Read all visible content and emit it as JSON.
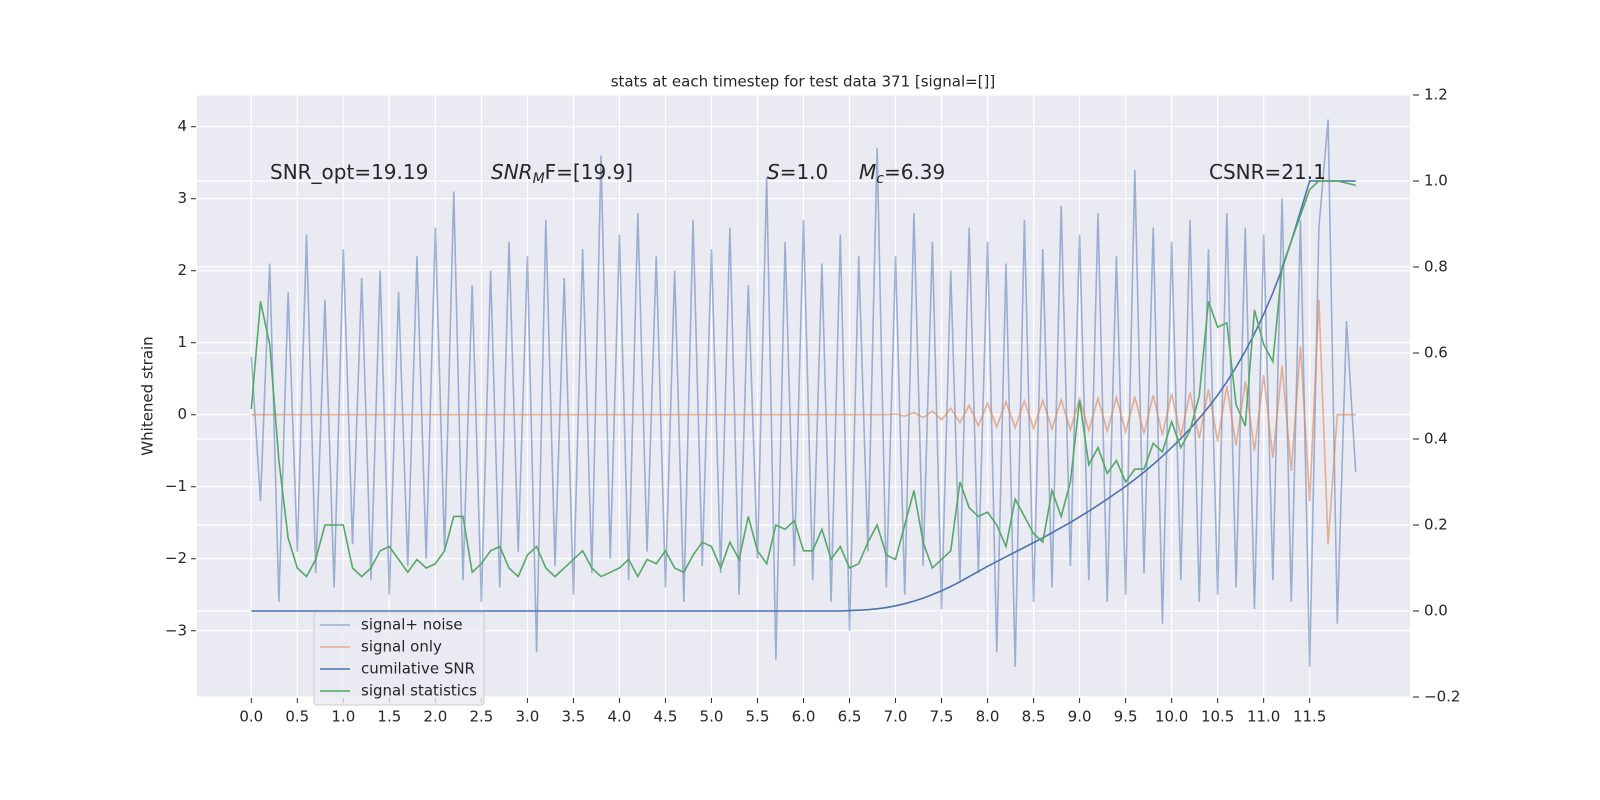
{
  "chart_data": {
    "type": "line",
    "title": "stats at each timestep for test data 371 [signal=[]]",
    "ylabel": "Whitened strain",
    "grid": true,
    "legend": "lower left",
    "xlim": [
      -0.59,
      12.59
    ],
    "ylim": [
      -3.92,
      4.44
    ],
    "y2lim": [
      -0.2,
      1.2
    ],
    "xticks": [
      {
        "value": 0,
        "label": "0.0"
      },
      0.5,
      {
        "value": 1,
        "label": "1.0"
      },
      1.5,
      {
        "value": 2,
        "label": "2.0"
      },
      2.5,
      {
        "value": 3,
        "label": "3.0"
      },
      3.5,
      {
        "value": 4,
        "label": "4.0"
      },
      4.5,
      {
        "value": 5,
        "label": "5.0"
      },
      5.5,
      {
        "value": 6,
        "label": "6.0"
      },
      6.5,
      {
        "value": 7,
        "label": "7.0"
      },
      7.5,
      {
        "value": 8,
        "label": "8.0"
      },
      8.5,
      {
        "value": 9,
        "label": "9.0"
      },
      9.5,
      {
        "value": 10,
        "label": "10.0"
      },
      10.5,
      {
        "value": 11,
        "label": "11.0"
      },
      11.5
    ],
    "yticks": [
      {
        "value": -3,
        "label": "−3"
      },
      {
        "value": -2,
        "label": "−2"
      },
      {
        "value": -1,
        "label": "−1"
      },
      0,
      1,
      2,
      3,
      4
    ],
    "y2ticks": [
      {
        "value": -0.2,
        "label": "−0.2"
      },
      {
        "value": 0,
        "label": "0.0"
      },
      0.2,
      0.4,
      0.6,
      0.8,
      {
        "value": 1,
        "label": "1.0"
      },
      1.2
    ],
    "annotations": [
      {
        "text": "SNR_opt=19.19"
      },
      {
        "text": "SNR",
        "sub": "M",
        "after": "F=[19.9]"
      },
      {
        "text": "S",
        "after": "=1.0"
      },
      {
        "text": "M",
        "sub": "c",
        "after": "=6.39"
      },
      {
        "text": "CSNR=21.1"
      }
    ],
    "x": [
      0,
      0.1,
      0.2,
      0.3,
      0.4,
      0.5,
      0.6,
      0.7,
      0.8,
      0.9,
      1,
      1.1,
      1.2,
      1.3,
      1.4,
      1.5,
      1.6,
      1.7,
      1.8,
      1.9,
      2,
      2.1,
      2.2,
      2.3,
      2.4,
      2.5,
      2.6,
      2.7,
      2.8,
      2.9,
      3,
      3.1,
      3.2,
      3.3,
      3.4,
      3.5,
      3.6,
      3.7,
      3.8,
      3.9,
      4,
      4.1,
      4.2,
      4.3,
      4.4,
      4.5,
      4.6,
      4.7,
      4.8,
      4.9,
      5,
      5.1,
      5.2,
      5.3,
      5.4,
      5.5,
      5.6,
      5.7,
      5.8,
      5.9,
      6,
      6.1,
      6.2,
      6.3,
      6.4,
      6.5,
      6.6,
      6.7,
      6.8,
      6.9,
      7,
      7.1,
      7.2,
      7.3,
      7.4,
      7.5,
      7.6,
      7.7,
      7.8,
      7.9,
      8,
      8.1,
      8.2,
      8.3,
      8.4,
      8.5,
      8.6,
      8.7,
      8.8,
      8.9,
      9,
      9.1,
      9.2,
      9.3,
      9.4,
      9.5,
      9.6,
      9.7,
      9.8,
      9.9,
      10,
      10.1,
      10.2,
      10.3,
      10.4,
      10.5,
      10.6,
      10.7,
      10.8,
      10.9,
      11,
      11.1,
      11.2,
      11.3,
      11.4,
      11.5,
      11.6,
      11.7,
      11.8,
      11.9,
      12
    ],
    "series": [
      {
        "name": "signal+ noise",
        "color": "#4c72b0",
        "opacity": 0.5,
        "values": [
          0.8,
          -1.2,
          2.1,
          -2.6,
          1.7,
          -1.9,
          2.5,
          -2.2,
          1.6,
          -2.4,
          2.3,
          -1.8,
          1.9,
          -2.3,
          2.0,
          -2.5,
          1.7,
          -2.1,
          2.2,
          -2.0,
          2.6,
          -1.9,
          3.1,
          -2.3,
          1.8,
          -2.6,
          2.0,
          -2.4,
          2.4,
          -1.9,
          2.2,
          -3.3,
          2.7,
          -2.1,
          1.9,
          -2.5,
          2.3,
          -2.2,
          3.6,
          -2.0,
          2.5,
          -2.3,
          2.8,
          -1.9,
          2.2,
          -2.4,
          2.0,
          -2.6,
          2.7,
          -2.1,
          2.3,
          -2.2,
          2.6,
          -2.5,
          1.8,
          -2.0,
          3.3,
          -3.4,
          2.4,
          -2.1,
          2.7,
          -2.3,
          2.1,
          -2.6,
          2.5,
          -3.0,
          2.2,
          -1.9,
          3.7,
          -2.4,
          2.2,
          -2.5,
          2.8,
          -2.1,
          2.4,
          -2.7,
          2.0,
          -2.3,
          2.6,
          -2.2,
          2.4,
          -3.3,
          2.1,
          -3.5,
          2.7,
          -2.6,
          2.3,
          -2.4,
          2.9,
          -2.1,
          2.5,
          -2.3,
          2.8,
          -2.6,
          2.2,
          -2.5,
          3.4,
          -2.2,
          2.6,
          -2.9,
          2.4,
          -2.3,
          2.7,
          -2.6,
          2.3,
          -2.5,
          2.8,
          -2.4,
          2.6,
          -2.7,
          2.5,
          -2.3,
          3.0,
          -2.6,
          2.7,
          -3.5,
          2.6,
          4.1,
          -2.9,
          1.3,
          -0.8
        ]
      },
      {
        "name": "signal only",
        "color": "#dd8452",
        "opacity": 0.6,
        "values": [
          0,
          0,
          0,
          0,
          0,
          0,
          0,
          0,
          0,
          0,
          0,
          0,
          0,
          0,
          0,
          0,
          0,
          0,
          0,
          0,
          0,
          0,
          0,
          0,
          0,
          0,
          0,
          0,
          0,
          0,
          0,
          0,
          0,
          0,
          0,
          0,
          0,
          0,
          0,
          0,
          0,
          0,
          0,
          0,
          0,
          0,
          0,
          0,
          0,
          0,
          0,
          0,
          0,
          0,
          0,
          0,
          0,
          0,
          0,
          0,
          0,
          0,
          0,
          0,
          0,
          0,
          0,
          0,
          0,
          0,
          0.01,
          -0.02,
          0.03,
          -0.04,
          0.05,
          -0.07,
          0.09,
          -0.11,
          0.13,
          -0.15,
          0.16,
          -0.17,
          0.18,
          -0.18,
          0.19,
          -0.19,
          0.2,
          -0.2,
          0.21,
          -0.21,
          0.22,
          -0.22,
          0.23,
          -0.23,
          0.24,
          -0.24,
          0.25,
          -0.26,
          0.27,
          -0.28,
          0.29,
          -0.3,
          0.31,
          -0.33,
          0.35,
          -0.37,
          0.4,
          -0.43,
          0.46,
          -0.5,
          0.55,
          -0.6,
          0.68,
          -0.78,
          0.95,
          -1.2,
          1.6,
          -1.8,
          0,
          0,
          0
        ]
      },
      {
        "name": "cumilative SNR",
        "color": "#4c72b0",
        "axis": "y2",
        "values": [
          0,
          0,
          0,
          0,
          0,
          0,
          0,
          0,
          0,
          0,
          0,
          0,
          0,
          0,
          0,
          0,
          0,
          0,
          0,
          0,
          0,
          0,
          0,
          0,
          0,
          0,
          0,
          0,
          0,
          0,
          0,
          0,
          0,
          0,
          0,
          0,
          0,
          0,
          0,
          0,
          0,
          0,
          0,
          0,
          0,
          0,
          0,
          0,
          0,
          0,
          0,
          0,
          0,
          0,
          0,
          0,
          0,
          0,
          0,
          0,
          0,
          0,
          0,
          0,
          0,
          0.001,
          0.002,
          0.003,
          0.005,
          0.008,
          0.012,
          0.017,
          0.023,
          0.03,
          0.038,
          0.047,
          0.057,
          0.068,
          0.08,
          0.092,
          0.104,
          0.115,
          0.126,
          0.137,
          0.148,
          0.159,
          0.17,
          0.182,
          0.194,
          0.206,
          0.219,
          0.232,
          0.246,
          0.26,
          0.275,
          0.29,
          0.306,
          0.323,
          0.341,
          0.36,
          0.38,
          0.401,
          0.424,
          0.448,
          0.474,
          0.502,
          0.533,
          0.567,
          0.604,
          0.645,
          0.69,
          0.74,
          0.795,
          0.86,
          0.93,
          1.0,
          1.0,
          1.0,
          1.0,
          1.0,
          1.0
        ]
      },
      {
        "name": "signal statistics",
        "color": "#55a868",
        "axis": "y2",
        "values": [
          0.47,
          0.72,
          0.62,
          0.35,
          0.17,
          0.1,
          0.08,
          0.12,
          0.2,
          0.2,
          0.2,
          0.1,
          0.08,
          0.1,
          0.14,
          0.15,
          0.12,
          0.09,
          0.12,
          0.1,
          0.11,
          0.14,
          0.22,
          0.22,
          0.09,
          0.11,
          0.14,
          0.15,
          0.1,
          0.08,
          0.13,
          0.15,
          0.1,
          0.08,
          0.1,
          0.12,
          0.14,
          0.1,
          0.08,
          0.09,
          0.1,
          0.12,
          0.08,
          0.12,
          0.11,
          0.14,
          0.1,
          0.09,
          0.13,
          0.16,
          0.15,
          0.1,
          0.16,
          0.12,
          0.22,
          0.14,
          0.11,
          0.2,
          0.19,
          0.21,
          0.14,
          0.14,
          0.19,
          0.12,
          0.15,
          0.1,
          0.11,
          0.16,
          0.2,
          0.13,
          0.12,
          0.2,
          0.28,
          0.16,
          0.1,
          0.12,
          0.14,
          0.3,
          0.24,
          0.22,
          0.23,
          0.2,
          0.15,
          0.26,
          0.22,
          0.18,
          0.16,
          0.28,
          0.22,
          0.3,
          0.49,
          0.34,
          0.38,
          0.32,
          0.35,
          0.3,
          0.33,
          0.33,
          0.39,
          0.37,
          0.44,
          0.38,
          0.42,
          0.5,
          0.72,
          0.66,
          0.67,
          0.48,
          0.43,
          0.7,
          0.62,
          0.58,
          0.8,
          0.86,
          0.92,
          0.98,
          1.0,
          1.0,
          1.0,
          0.995,
          0.99
        ]
      }
    ]
  }
}
